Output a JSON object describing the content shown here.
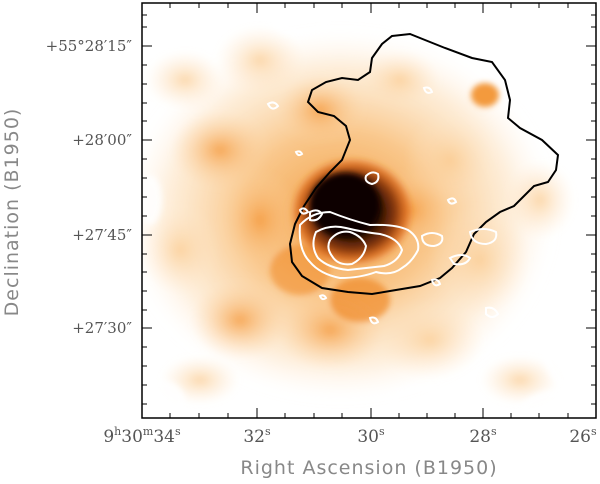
{
  "figure": {
    "xlabel": "Right Ascension (B1950)",
    "ylabel": "Declination (B1950)",
    "x_ticks": [
      {
        "main": "9",
        "sup1": "h",
        "mid": "30",
        "sup2": "m",
        "rest": "34",
        "sup3": "s"
      },
      {
        "main": "32",
        "sup1": "s"
      },
      {
        "main": "30",
        "sup1": "s"
      },
      {
        "main": "28",
        "sup1": "s"
      },
      {
        "main": "26",
        "sup1": "s"
      }
    ],
    "y_ticks": [
      "+55°28′15″",
      "+28′00″",
      "+27′45″",
      "+27′30″"
    ],
    "colors": {
      "frame": "#000000",
      "orange_light": "#fde2bf",
      "orange_mid": "#f9a449",
      "orange_dark": "#e2640e",
      "core": "#1a0a04",
      "contour_black": "#000000",
      "contour_white": "#ffffff"
    }
  }
}
